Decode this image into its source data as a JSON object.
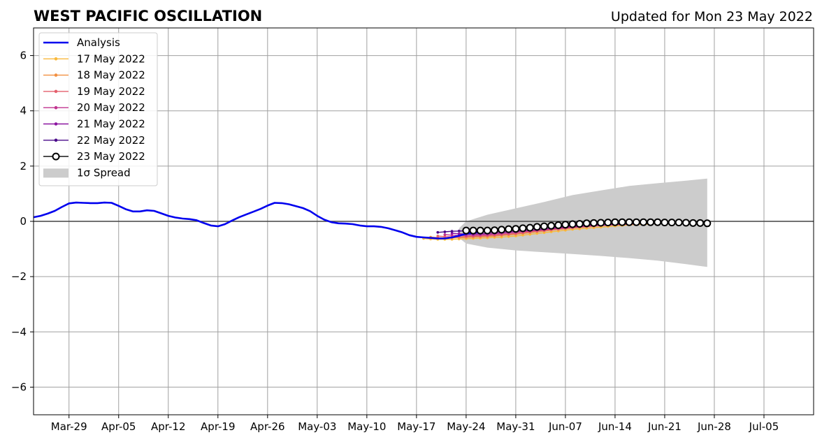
{
  "chart_data": {
    "type": "line",
    "title": "WEST PACIFIC OSCILLATION",
    "subtitle": "Updated for Mon 23 May 2022",
    "xlabel": "",
    "ylabel": "",
    "x_range": [
      "2022-03-24",
      "2022-07-12"
    ],
    "ylim": [
      -7,
      7
    ],
    "y_ticks": [
      -6,
      -4,
      -2,
      0,
      2,
      4,
      6
    ],
    "y_tick_labels": [
      "−6",
      "−4",
      "−2",
      "0",
      "2",
      "4",
      "6"
    ],
    "x_ticks": [
      "2022-03-29",
      "2022-04-05",
      "2022-04-12",
      "2022-04-19",
      "2022-04-26",
      "2022-05-03",
      "2022-05-10",
      "2022-05-17",
      "2022-05-24",
      "2022-05-31",
      "2022-06-07",
      "2022-06-14",
      "2022-06-21",
      "2022-06-28",
      "2022-07-05"
    ],
    "x_tick_labels": [
      "Mar-29",
      "Apr-05",
      "Apr-12",
      "Apr-19",
      "Apr-26",
      "May-03",
      "May-10",
      "May-17",
      "May-24",
      "May-31",
      "Jun-07",
      "Jun-14",
      "Jun-21",
      "Jun-28",
      "Jul-05"
    ],
    "grid": true,
    "legend_position": "top-left",
    "analysis": {
      "name": "Analysis",
      "color": "#0000ee",
      "start": "2022-03-24",
      "values": [
        0.15,
        0.2,
        0.28,
        0.38,
        0.52,
        0.65,
        0.68,
        0.67,
        0.66,
        0.66,
        0.68,
        0.67,
        0.56,
        0.44,
        0.36,
        0.36,
        0.4,
        0.38,
        0.29,
        0.2,
        0.14,
        0.1,
        0.08,
        0.04,
        -0.06,
        -0.15,
        -0.18,
        -0.1,
        0.03,
        0.15,
        0.25,
        0.35,
        0.45,
        0.57,
        0.67,
        0.66,
        0.62,
        0.55,
        0.48,
        0.37,
        0.2,
        0.06,
        -0.03,
        -0.07,
        -0.08,
        -0.1,
        -0.15,
        -0.18,
        -0.18,
        -0.2,
        -0.25,
        -0.32,
        -0.4,
        -0.5,
        -0.56,
        -0.58,
        -0.6,
        -0.62,
        -0.62,
        -0.58,
        -0.52,
        -0.45,
        -0.42,
        -0.38,
        -0.34,
        -0.3
      ]
    },
    "forecasts": [
      {
        "name": "17 May 2022",
        "color": "#f9b93b",
        "start": "2022-05-18",
        "values": [
          -0.62,
          -0.64,
          -0.65,
          -0.65,
          -0.65,
          -0.64,
          -0.63,
          -0.62,
          -0.61,
          -0.6,
          -0.58,
          -0.57,
          -0.55,
          -0.53,
          -0.5,
          -0.47,
          -0.44,
          -0.41,
          -0.38,
          -0.35,
          -0.32,
          -0.29,
          -0.27,
          -0.25,
          -0.23,
          -0.21,
          -0.19,
          -0.17,
          -0.15,
          -0.13,
          -0.12,
          -0.11,
          -0.1
        ]
      },
      {
        "name": "18 May 2022",
        "color": "#f28f40",
        "start": "2022-05-19",
        "values": [
          -0.57,
          -0.59,
          -0.6,
          -0.6,
          -0.59,
          -0.58,
          -0.57,
          -0.56,
          -0.55,
          -0.53,
          -0.51,
          -0.49,
          -0.47,
          -0.44,
          -0.41,
          -0.38,
          -0.35,
          -0.32,
          -0.29,
          -0.27,
          -0.24,
          -0.22,
          -0.2,
          -0.18,
          -0.16,
          -0.14,
          -0.13,
          -0.12,
          -0.11,
          -0.1,
          -0.09,
          -0.08,
          -0.08
        ]
      },
      {
        "name": "19 May 2022",
        "color": "#e45f6c",
        "start": "2022-05-20",
        "values": [
          -0.53,
          -0.55,
          -0.56,
          -0.56,
          -0.55,
          -0.54,
          -0.53,
          -0.52,
          -0.5,
          -0.48,
          -0.46,
          -0.44,
          -0.41,
          -0.38,
          -0.35,
          -0.33,
          -0.3,
          -0.28,
          -0.25,
          -0.23,
          -0.21,
          -0.19,
          -0.17,
          -0.15,
          -0.14,
          -0.12,
          -0.11,
          -0.1,
          -0.09,
          -0.08,
          -0.08,
          -0.07,
          -0.07
        ]
      },
      {
        "name": "20 May 2022",
        "color": "#c1338f",
        "start": "2022-05-21",
        "values": [
          -0.48,
          -0.5,
          -0.51,
          -0.51,
          -0.5,
          -0.49,
          -0.48,
          -0.46,
          -0.44,
          -0.42,
          -0.4,
          -0.37,
          -0.35,
          -0.32,
          -0.3,
          -0.27,
          -0.25,
          -0.23,
          -0.21,
          -0.19,
          -0.17,
          -0.15,
          -0.14,
          -0.13,
          -0.12,
          -0.11,
          -0.1,
          -0.09,
          -0.08,
          -0.08,
          -0.07,
          -0.07,
          -0.07
        ]
      },
      {
        "name": "21 May 2022",
        "color": "#8b14a0",
        "start": "2022-05-22",
        "values": [
          -0.43,
          -0.45,
          -0.46,
          -0.46,
          -0.45,
          -0.44,
          -0.42,
          -0.4,
          -0.38,
          -0.36,
          -0.34,
          -0.32,
          -0.3,
          -0.28,
          -0.25,
          -0.23,
          -0.21,
          -0.19,
          -0.17,
          -0.16,
          -0.14,
          -0.13,
          -0.12,
          -0.11,
          -0.1,
          -0.09,
          -0.08,
          -0.08,
          -0.07,
          -0.07,
          -0.06,
          -0.06,
          -0.06
        ]
      },
      {
        "name": "22 May 2022",
        "color": "#4a0a8a",
        "start": "2022-05-20",
        "values": [
          -0.4,
          -0.38,
          -0.36,
          -0.35,
          -0.34,
          -0.33
        ]
      },
      {
        "name": "23 May 2022",
        "color": "#000000",
        "start": "2022-05-24",
        "values": [
          -0.33,
          -0.33,
          -0.33,
          -0.33,
          -0.32,
          -0.3,
          -0.28,
          -0.27,
          -0.25,
          -0.23,
          -0.2,
          -0.18,
          -0.16,
          -0.14,
          -0.12,
          -0.1,
          -0.09,
          -0.07,
          -0.06,
          -0.05,
          -0.04,
          -0.03,
          -0.03,
          -0.03,
          -0.03,
          -0.03,
          -0.03,
          -0.03,
          -0.04,
          -0.04,
          -0.04,
          -0.05,
          -0.06,
          -0.06,
          -0.07
        ]
      }
    ],
    "spread": {
      "name": "1σ Spread",
      "color": "#cccccc",
      "x": [
        "2022-05-23",
        "2022-05-24",
        "2022-05-27",
        "2022-05-31",
        "2022-06-04",
        "2022-06-08",
        "2022-06-12",
        "2022-06-16",
        "2022-06-20",
        "2022-06-24",
        "2022-06-27"
      ],
      "upper": [
        -0.25,
        0.0,
        0.24,
        0.47,
        0.7,
        0.95,
        1.12,
        1.28,
        1.38,
        1.47,
        1.55
      ],
      "lower": [
        -0.6,
        -0.8,
        -0.95,
        -1.05,
        -1.12,
        -1.18,
        -1.25,
        -1.33,
        -1.42,
        -1.55,
        -1.65
      ]
    }
  }
}
